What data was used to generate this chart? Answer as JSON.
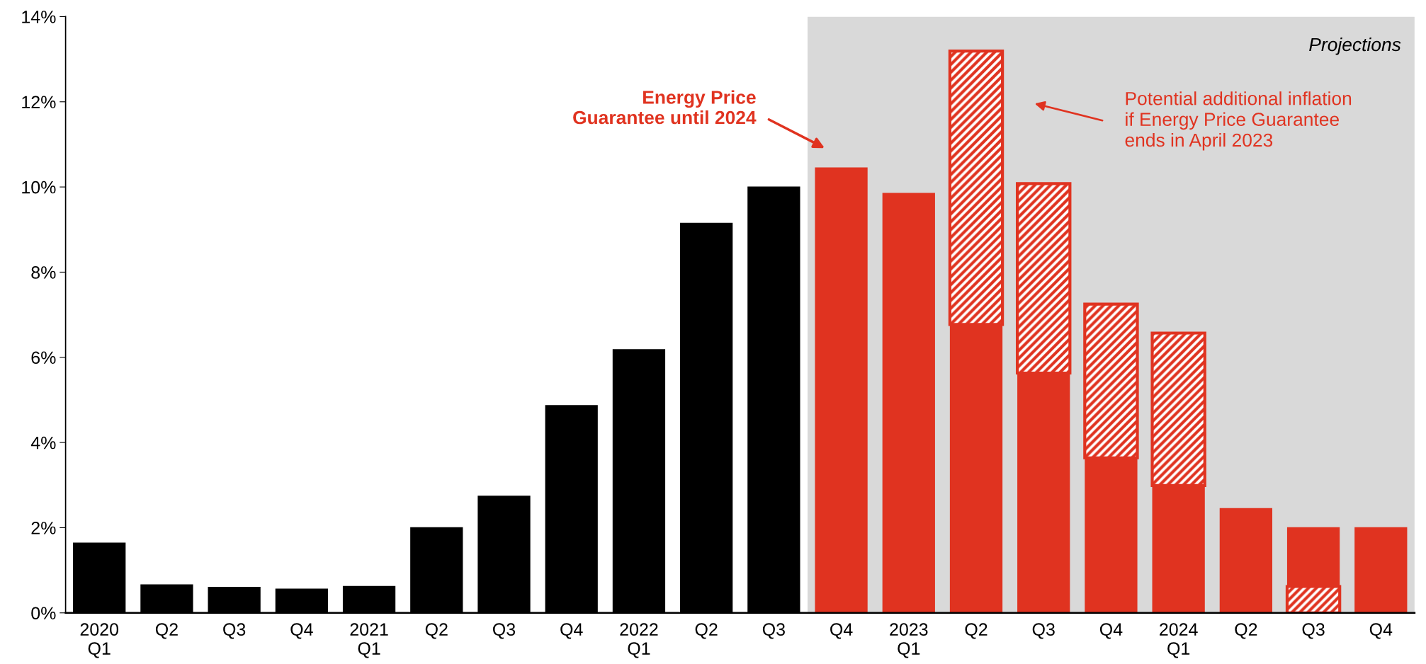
{
  "chart_data": {
    "type": "bar",
    "stacked": true,
    "categories": [
      "2020\nQ1",
      "Q2",
      "Q3",
      "Q4",
      "2021\nQ1",
      "Q2",
      "Q3",
      "Q4",
      "2022\nQ1",
      "Q2",
      "Q3",
      "Q4",
      "2023\nQ1",
      "Q2",
      "Q3",
      "Q4",
      "2024\nQ1",
      "Q2",
      "Q3",
      "Q4"
    ],
    "series": [
      {
        "color": "#e03320",
        "values": [
          null,
          null,
          null,
          null,
          null,
          null,
          null,
          null,
          null,
          null,
          null,
          null,
          null,
          null,
          null,
          null,
          null,
          null,
          0.62,
          null
        ]
      },
      {
        "colors": [
          "#000000",
          "#000000",
          "#000000",
          "#000000",
          "#000000",
          "#000000",
          "#000000",
          "#000000",
          "#000000",
          "#000000",
          "#000000",
          "#e03320",
          "#e03320",
          "#e03320",
          "#e03320",
          "#e03320",
          "#e03320",
          "#e03320",
          "#e03320",
          "#e03320"
        ],
        "values": [
          1.65,
          0.67,
          0.61,
          0.57,
          0.63,
          2.01,
          2.75,
          4.88,
          6.19,
          9.16,
          10.01,
          10.46,
          9.86,
          6.77,
          5.63,
          3.64,
          2.99,
          2.46,
          1.39,
          2.01
        ]
      },
      {
        "color": "#e03320",
        "values": [
          null,
          null,
          null,
          null,
          null,
          null,
          null,
          null,
          null,
          null,
          null,
          null,
          null,
          6.42,
          4.45,
          3.61,
          3.58,
          null,
          null,
          null
        ]
      }
    ],
    "ylim": [
      0,
      14
    ],
    "yticks": [
      {
        "value": 0,
        "label": "0%"
      },
      {
        "value": 2,
        "label": "2%"
      },
      {
        "value": 4,
        "label": "4%"
      },
      {
        "value": 6,
        "label": "6%"
      },
      {
        "value": 8,
        "label": "8%"
      },
      {
        "value": 10,
        "label": "10%"
      },
      {
        "value": 12,
        "label": "12%"
      },
      {
        "value": 14,
        "label": "14%"
      }
    ],
    "annotations": [
      "Projections",
      "Energy Price\nGuarantee until 2024",
      "Potential additional inflation\nif Energy Price Guarantee\nends in April 2023"
    ],
    "grid": false,
    "legend": false
  }
}
